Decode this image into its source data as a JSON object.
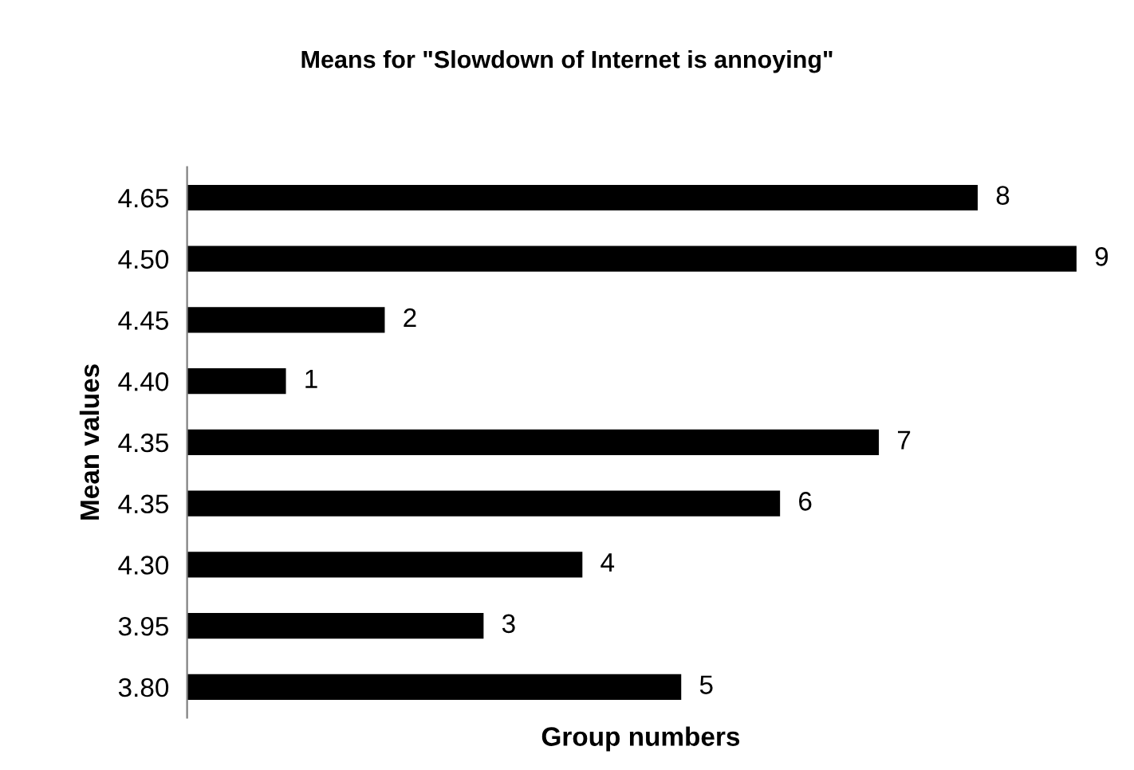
{
  "chart_data": {
    "type": "bar",
    "orientation": "horizontal",
    "title": "Means for \"Slowdown of Internet is annoying\"",
    "xlabel": "Group numbers",
    "ylabel": "Mean values",
    "categories": [
      "4.65",
      "4.50",
      "4.45",
      "4.40",
      "4.35",
      "4.35",
      "4.30",
      "3.95",
      "3.80"
    ],
    "values": [
      8,
      9,
      2,
      1,
      7,
      6,
      4,
      3,
      5
    ],
    "color": "#000000",
    "data_labels": true,
    "grid": false,
    "legend": false
  }
}
